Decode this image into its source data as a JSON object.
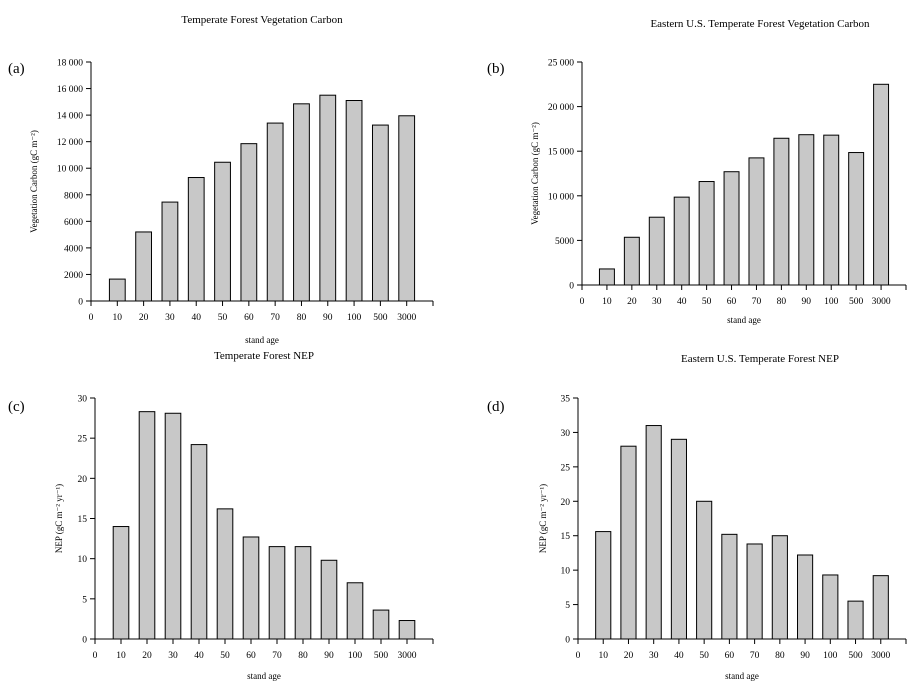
{
  "chart_data": [
    {
      "type": "bar",
      "panel": "(a)",
      "title": "Temperate Forest Vegetation Carbon",
      "xlabel": "stand age",
      "ylabel": "Vegetation Carbon (gC m⁻²)",
      "x_ticks": [
        "0",
        "10",
        "20",
        "30",
        "40",
        "50",
        "60",
        "70",
        "80",
        "90",
        "100",
        "500",
        "3000"
      ],
      "categories": [
        "10",
        "20",
        "30",
        "40",
        "50",
        "60",
        "70",
        "80",
        "90",
        "100",
        "500",
        "3000"
      ],
      "values": [
        1650,
        5200,
        7450,
        9300,
        10450,
        11850,
        13400,
        14850,
        15500,
        15100,
        13250,
        13950
      ],
      "ylim": [
        0,
        18000
      ],
      "y_ticks": [
        "0",
        "2000",
        "4000",
        "6000",
        "8000",
        "10 000",
        "12 000",
        "14 000",
        "16 000",
        "18 000"
      ],
      "bar_color": "#c8c8c8"
    },
    {
      "type": "bar",
      "panel": "(b)",
      "title": "Eastern U.S. Temperate Forest Vegetation Carbon",
      "xlabel": "stand age",
      "ylabel": "Vegetation Carbon (gC m⁻²)",
      "x_ticks": [
        "0",
        "10",
        "20",
        "30",
        "40",
        "50",
        "60",
        "70",
        "80",
        "90",
        "100",
        "500",
        "3000"
      ],
      "categories": [
        "10",
        "20",
        "30",
        "40",
        "50",
        "60",
        "70",
        "80",
        "90",
        "100",
        "500",
        "3000"
      ],
      "values": [
        1800,
        5350,
        7600,
        9850,
        11600,
        12700,
        14250,
        16450,
        16850,
        16800,
        14850,
        22500
      ],
      "ylim": [
        0,
        25000
      ],
      "y_ticks": [
        "0",
        "5000",
        "10 000",
        "15 000",
        "20 000",
        "25 000"
      ],
      "bar_color": "#c8c8c8"
    },
    {
      "type": "bar",
      "panel": "(c)",
      "title": "Temperate Forest NEP",
      "xlabel": "stand age",
      "ylabel": "NEP (gC m⁻² yr⁻¹)",
      "x_ticks": [
        "0",
        "10",
        "20",
        "30",
        "40",
        "50",
        "60",
        "70",
        "80",
        "90",
        "100",
        "500",
        "3000"
      ],
      "categories": [
        "10",
        "20",
        "30",
        "40",
        "50",
        "60",
        "70",
        "80",
        "90",
        "100",
        "500",
        "3000"
      ],
      "values": [
        14.0,
        28.3,
        28.1,
        24.2,
        16.2,
        12.7,
        11.5,
        11.5,
        9.8,
        7.0,
        3.6,
        2.3
      ],
      "ylim": [
        0,
        30
      ],
      "y_ticks": [
        "0",
        "5",
        "10",
        "15",
        "20",
        "25",
        "30"
      ],
      "bar_color": "#c8c8c8"
    },
    {
      "type": "bar",
      "panel": "(d)",
      "title": "Eastern U.S. Temperate Forest NEP",
      "xlabel": "stand age",
      "ylabel": "NEP (gC m⁻² yr⁻¹)",
      "x_ticks": [
        "0",
        "10",
        "20",
        "30",
        "40",
        "50",
        "60",
        "70",
        "80",
        "90",
        "100",
        "500",
        "3000"
      ],
      "categories": [
        "10",
        "20",
        "30",
        "40",
        "50",
        "60",
        "70",
        "80",
        "90",
        "100",
        "500",
        "3000"
      ],
      "values": [
        15.6,
        28.0,
        31.0,
        29.0,
        20.0,
        15.2,
        13.8,
        15.0,
        12.2,
        9.3,
        5.5,
        9.2
      ],
      "ylim": [
        0,
        35
      ],
      "y_ticks": [
        "0",
        "5",
        "10",
        "15",
        "20",
        "25",
        "30",
        "35"
      ],
      "bar_color": "#c8c8c8"
    }
  ]
}
